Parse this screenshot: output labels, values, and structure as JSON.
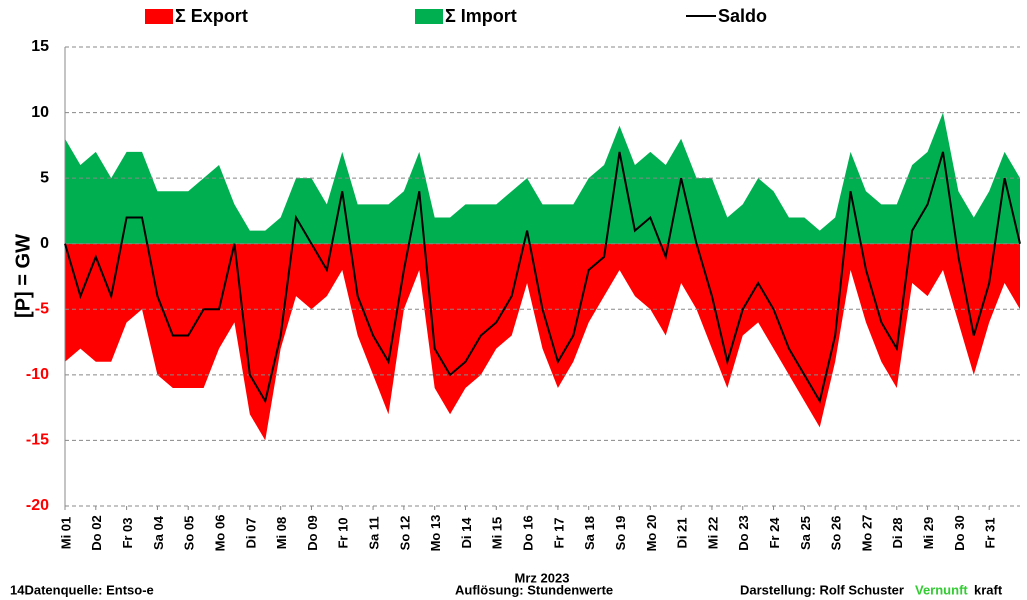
{
  "chart_data": {
    "type": "area",
    "ylabel": "[P]  = GW",
    "xlabel": "Mrz 2023",
    "footer": {
      "source": "14Datenquelle: Entso-e",
      "resolution": "Auflösung: Stundenwerte",
      "author": "Darstellung:  Rolf Schuster",
      "brand1": "Vernunft",
      "brand2": "kraft"
    },
    "xlim": [
      0,
      31
    ],
    "xticks": [
      {
        "value": 0,
        "label": "Mi 01"
      },
      {
        "value": 1,
        "label": "Do 02"
      },
      {
        "value": 2,
        "label": "Fr 03"
      },
      {
        "value": 3,
        "label": "Sa 04"
      },
      {
        "value": 4,
        "label": "So 05"
      },
      {
        "value": 5,
        "label": "Mo 06"
      },
      {
        "value": 6,
        "label": "Di 07"
      },
      {
        "value": 7,
        "label": "Mi 08"
      },
      {
        "value": 8,
        "label": "Do 09"
      },
      {
        "value": 9,
        "label": "Fr 10"
      },
      {
        "value": 10,
        "label": "Sa 11"
      },
      {
        "value": 11,
        "label": "So 12"
      },
      {
        "value": 12,
        "label": "Mo 13"
      },
      {
        "value": 13,
        "label": "Di 14"
      },
      {
        "value": 14,
        "label": "Mi 15"
      },
      {
        "value": 15,
        "label": "Do 16"
      },
      {
        "value": 16,
        "label": "Fr 17"
      },
      {
        "value": 17,
        "label": "Sa 18"
      },
      {
        "value": 18,
        "label": "So 19"
      },
      {
        "value": 19,
        "label": "Mo 20"
      },
      {
        "value": 20,
        "label": "Di 21"
      },
      {
        "value": 21,
        "label": "Mi 22"
      },
      {
        "value": 22,
        "label": "Do 23"
      },
      {
        "value": 23,
        "label": "Fr 24"
      },
      {
        "value": 24,
        "label": "Sa 25"
      },
      {
        "value": 25,
        "label": "So 26"
      },
      {
        "value": 26,
        "label": "Mo 27"
      },
      {
        "value": 27,
        "label": "Di 28"
      },
      {
        "value": 28,
        "label": "Mi 29"
      },
      {
        "value": 29,
        "label": "Do 30"
      },
      {
        "value": 30,
        "label": "Fr 31"
      }
    ],
    "ylim": [
      -20,
      15
    ],
    "yticks": [
      -20,
      -15,
      -10,
      -5,
      0,
      5,
      10,
      15
    ],
    "negative_tick_color": "#ff0000",
    "grid": true,
    "x": [
      0,
      0.5,
      1,
      1.5,
      2,
      2.5,
      3,
      3.5,
      4,
      4.5,
      5,
      5.5,
      6,
      6.5,
      7,
      7.5,
      8,
      8.5,
      9,
      9.5,
      10,
      10.5,
      11,
      11.5,
      12,
      12.5,
      13,
      13.5,
      14,
      14.5,
      15,
      15.5,
      16,
      16.5,
      17,
      17.5,
      18,
      18.5,
      19,
      19.5,
      20,
      20.5,
      21,
      21.5,
      22,
      22.5,
      23,
      23.5,
      24,
      24.5,
      25,
      25.5,
      26,
      26.5,
      27,
      27.5,
      28,
      28.5,
      29,
      29.5,
      30,
      30.5,
      31
    ],
    "series": [
      {
        "name": "Σ Export",
        "kind": "area",
        "color": "#ff0000",
        "values": [
          -9,
          -8,
          -9,
          -9,
          -6,
          -5,
          -10,
          -11,
          -11,
          -11,
          -8,
          -6,
          -13,
          -15,
          -8,
          -4,
          -5,
          -4,
          -2,
          -7,
          -10,
          -13,
          -5,
          -2,
          -11,
          -13,
          -11,
          -10,
          -8,
          -7,
          -3,
          -8,
          -11,
          -9,
          -6,
          -4,
          -2,
          -4,
          -5,
          -7,
          -3,
          -5,
          -8,
          -11,
          -7,
          -6,
          -8,
          -10,
          -12,
          -14,
          -9,
          -2,
          -6,
          -9,
          -11,
          -3,
          -4,
          -2,
          -6,
          -10,
          -6,
          -3,
          -5
        ]
      },
      {
        "name": "Σ Import",
        "kind": "area",
        "color": "#00b050",
        "values": [
          8,
          6,
          7,
          5,
          7,
          7,
          4,
          4,
          4,
          5,
          6,
          3,
          1,
          1,
          2,
          5,
          5,
          3,
          7,
          3,
          3,
          3,
          4,
          7,
          2,
          2,
          3,
          3,
          3,
          4,
          5,
          3,
          3,
          3,
          5,
          6,
          9,
          6,
          7,
          6,
          8,
          5,
          5,
          2,
          3,
          5,
          4,
          2,
          2,
          1,
          2,
          7,
          4,
          3,
          3,
          6,
          7,
          10,
          4,
          2,
          4,
          7,
          5
        ]
      },
      {
        "name": "Saldo",
        "kind": "line",
        "color": "#000000",
        "values": [
          0,
          -4,
          -1,
          -4,
          2,
          2,
          -4,
          -7,
          -7,
          -5,
          -5,
          0,
          -10,
          -12,
          -7,
          2,
          0,
          -2,
          4,
          -4,
          -7,
          -9,
          -2,
          4,
          -8,
          -10,
          -9,
          -7,
          -6,
          -4,
          1,
          -5,
          -9,
          -7,
          -2,
          -1,
          7,
          1,
          2,
          -1,
          5,
          0,
          -4,
          -9,
          -5,
          -3,
          -5,
          -8,
          -10,
          -12,
          -7,
          4,
          -2,
          -6,
          -8,
          1,
          3,
          7,
          -1,
          -7,
          -3,
          5,
          0
        ]
      }
    ]
  }
}
